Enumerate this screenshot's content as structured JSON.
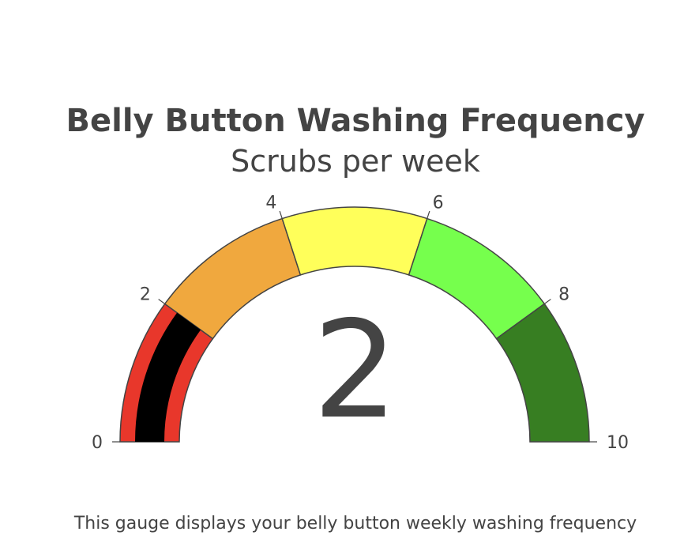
{
  "chart_data": {
    "type": "gauge",
    "title": "Belly Button Washing Frequency",
    "subtitle": "Scrubs per week",
    "value": 2,
    "value_label": "2",
    "range": [
      0,
      10
    ],
    "ticks": [
      "0",
      "2",
      "4",
      "6",
      "8",
      "10"
    ],
    "tick_values": [
      0,
      2,
      4,
      6,
      8,
      10
    ],
    "steps": [
      {
        "range": [
          0,
          2
        ],
        "color": "#e8372b"
      },
      {
        "range": [
          2,
          4
        ],
        "color": "#f0a83e"
      },
      {
        "range": [
          4,
          6
        ],
        "color": "#ffff5a"
      },
      {
        "range": [
          6,
          8
        ],
        "color": "#76ff4d"
      },
      {
        "range": [
          8,
          10
        ],
        "color": "#377e22"
      }
    ],
    "bar_color": "#000000",
    "border_color": "#444444"
  },
  "caption": "This gauge displays your belly button weekly washing frequency"
}
